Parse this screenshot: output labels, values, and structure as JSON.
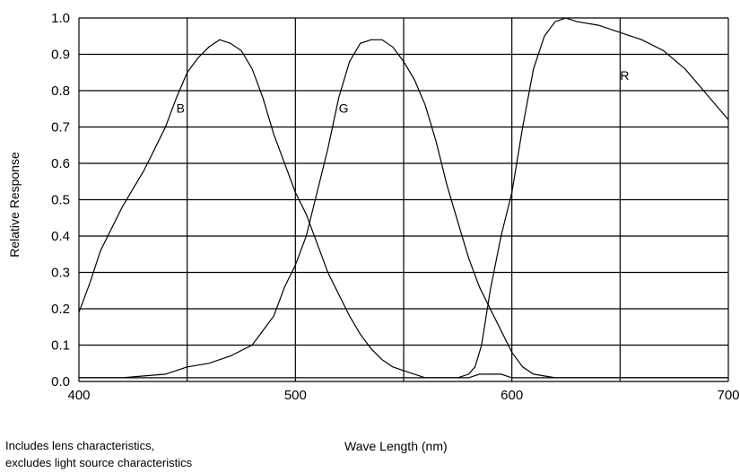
{
  "chart_data": {
    "type": "line",
    "xlabel": "Wave Length (nm)",
    "ylabel": "Relative Response",
    "xlim": [
      400,
      700
    ],
    "ylim": [
      0,
      1.0
    ],
    "x_ticks": [
      "400",
      "500",
      "600",
      "700"
    ],
    "y_ticks": [
      "0.0",
      "0.1",
      "0.2",
      "0.3",
      "0.4",
      "0.5",
      "0.6",
      "0.7",
      "0.8",
      "0.9",
      "1.0"
    ],
    "grid": true,
    "series": [
      {
        "name": "B",
        "label_at": [
          445,
          0.74
        ],
        "points": [
          [
            400,
            0.19
          ],
          [
            405,
            0.27
          ],
          [
            410,
            0.36
          ],
          [
            415,
            0.42
          ],
          [
            420,
            0.48
          ],
          [
            425,
            0.53
          ],
          [
            430,
            0.58
          ],
          [
            435,
            0.64
          ],
          [
            440,
            0.7
          ],
          [
            445,
            0.78
          ],
          [
            450,
            0.85
          ],
          [
            455,
            0.89
          ],
          [
            460,
            0.92
          ],
          [
            465,
            0.94
          ],
          [
            470,
            0.93
          ],
          [
            475,
            0.91
          ],
          [
            480,
            0.86
          ],
          [
            485,
            0.78
          ],
          [
            490,
            0.68
          ],
          [
            495,
            0.6
          ],
          [
            500,
            0.52
          ],
          [
            505,
            0.46
          ],
          [
            510,
            0.38
          ],
          [
            515,
            0.3
          ],
          [
            520,
            0.24
          ],
          [
            525,
            0.18
          ],
          [
            530,
            0.13
          ],
          [
            535,
            0.09
          ],
          [
            540,
            0.06
          ],
          [
            545,
            0.04
          ],
          [
            550,
            0.03
          ],
          [
            555,
            0.02
          ],
          [
            560,
            0.01
          ],
          [
            565,
            0.01
          ],
          [
            570,
            0.01
          ],
          [
            575,
            0.01
          ],
          [
            580,
            0.01
          ],
          [
            585,
            0.02
          ],
          [
            590,
            0.02
          ],
          [
            595,
            0.02
          ],
          [
            600,
            0.01
          ],
          [
            610,
            0.01
          ],
          [
            620,
            0.01
          ],
          [
            640,
            0.01
          ],
          [
            660,
            0.01
          ],
          [
            680,
            0.01
          ],
          [
            700,
            0.01
          ]
        ]
      },
      {
        "name": "G",
        "label_at": [
          520,
          0.74
        ],
        "points": [
          [
            400,
            0.01
          ],
          [
            420,
            0.01
          ],
          [
            440,
            0.02
          ],
          [
            450,
            0.04
          ],
          [
            460,
            0.05
          ],
          [
            470,
            0.07
          ],
          [
            480,
            0.1
          ],
          [
            490,
            0.18
          ],
          [
            495,
            0.26
          ],
          [
            500,
            0.32
          ],
          [
            505,
            0.4
          ],
          [
            510,
            0.52
          ],
          [
            515,
            0.64
          ],
          [
            520,
            0.78
          ],
          [
            525,
            0.88
          ],
          [
            530,
            0.93
          ],
          [
            535,
            0.94
          ],
          [
            540,
            0.94
          ],
          [
            545,
            0.92
          ],
          [
            550,
            0.88
          ],
          [
            555,
            0.83
          ],
          [
            560,
            0.76
          ],
          [
            565,
            0.66
          ],
          [
            570,
            0.54
          ],
          [
            575,
            0.44
          ],
          [
            580,
            0.34
          ],
          [
            585,
            0.26
          ],
          [
            590,
            0.2
          ],
          [
            595,
            0.14
          ],
          [
            600,
            0.08
          ],
          [
            605,
            0.04
          ],
          [
            610,
            0.02
          ],
          [
            620,
            0.01
          ],
          [
            630,
            0.01
          ],
          [
            640,
            0.01
          ],
          [
            660,
            0.01
          ],
          [
            680,
            0.01
          ],
          [
            700,
            0.01
          ]
        ]
      },
      {
        "name": "R",
        "label_at": [
          650,
          0.83
        ],
        "points": [
          [
            400,
            0.01
          ],
          [
            450,
            0.01
          ],
          [
            500,
            0.01
          ],
          [
            550,
            0.01
          ],
          [
            560,
            0.01
          ],
          [
            570,
            0.01
          ],
          [
            575,
            0.01
          ],
          [
            580,
            0.02
          ],
          [
            583,
            0.04
          ],
          [
            586,
            0.1
          ],
          [
            590,
            0.25
          ],
          [
            595,
            0.4
          ],
          [
            600,
            0.52
          ],
          [
            605,
            0.7
          ],
          [
            610,
            0.86
          ],
          [
            615,
            0.95
          ],
          [
            620,
            0.99
          ],
          [
            625,
            1.0
          ],
          [
            630,
            0.99
          ],
          [
            640,
            0.98
          ],
          [
            650,
            0.96
          ],
          [
            660,
            0.94
          ],
          [
            670,
            0.91
          ],
          [
            680,
            0.86
          ],
          [
            690,
            0.79
          ],
          [
            700,
            0.72
          ]
        ]
      }
    ]
  },
  "notes": {
    "line1": "Includes lens characteristics,",
    "line2": "excludes light source characteristics"
  }
}
